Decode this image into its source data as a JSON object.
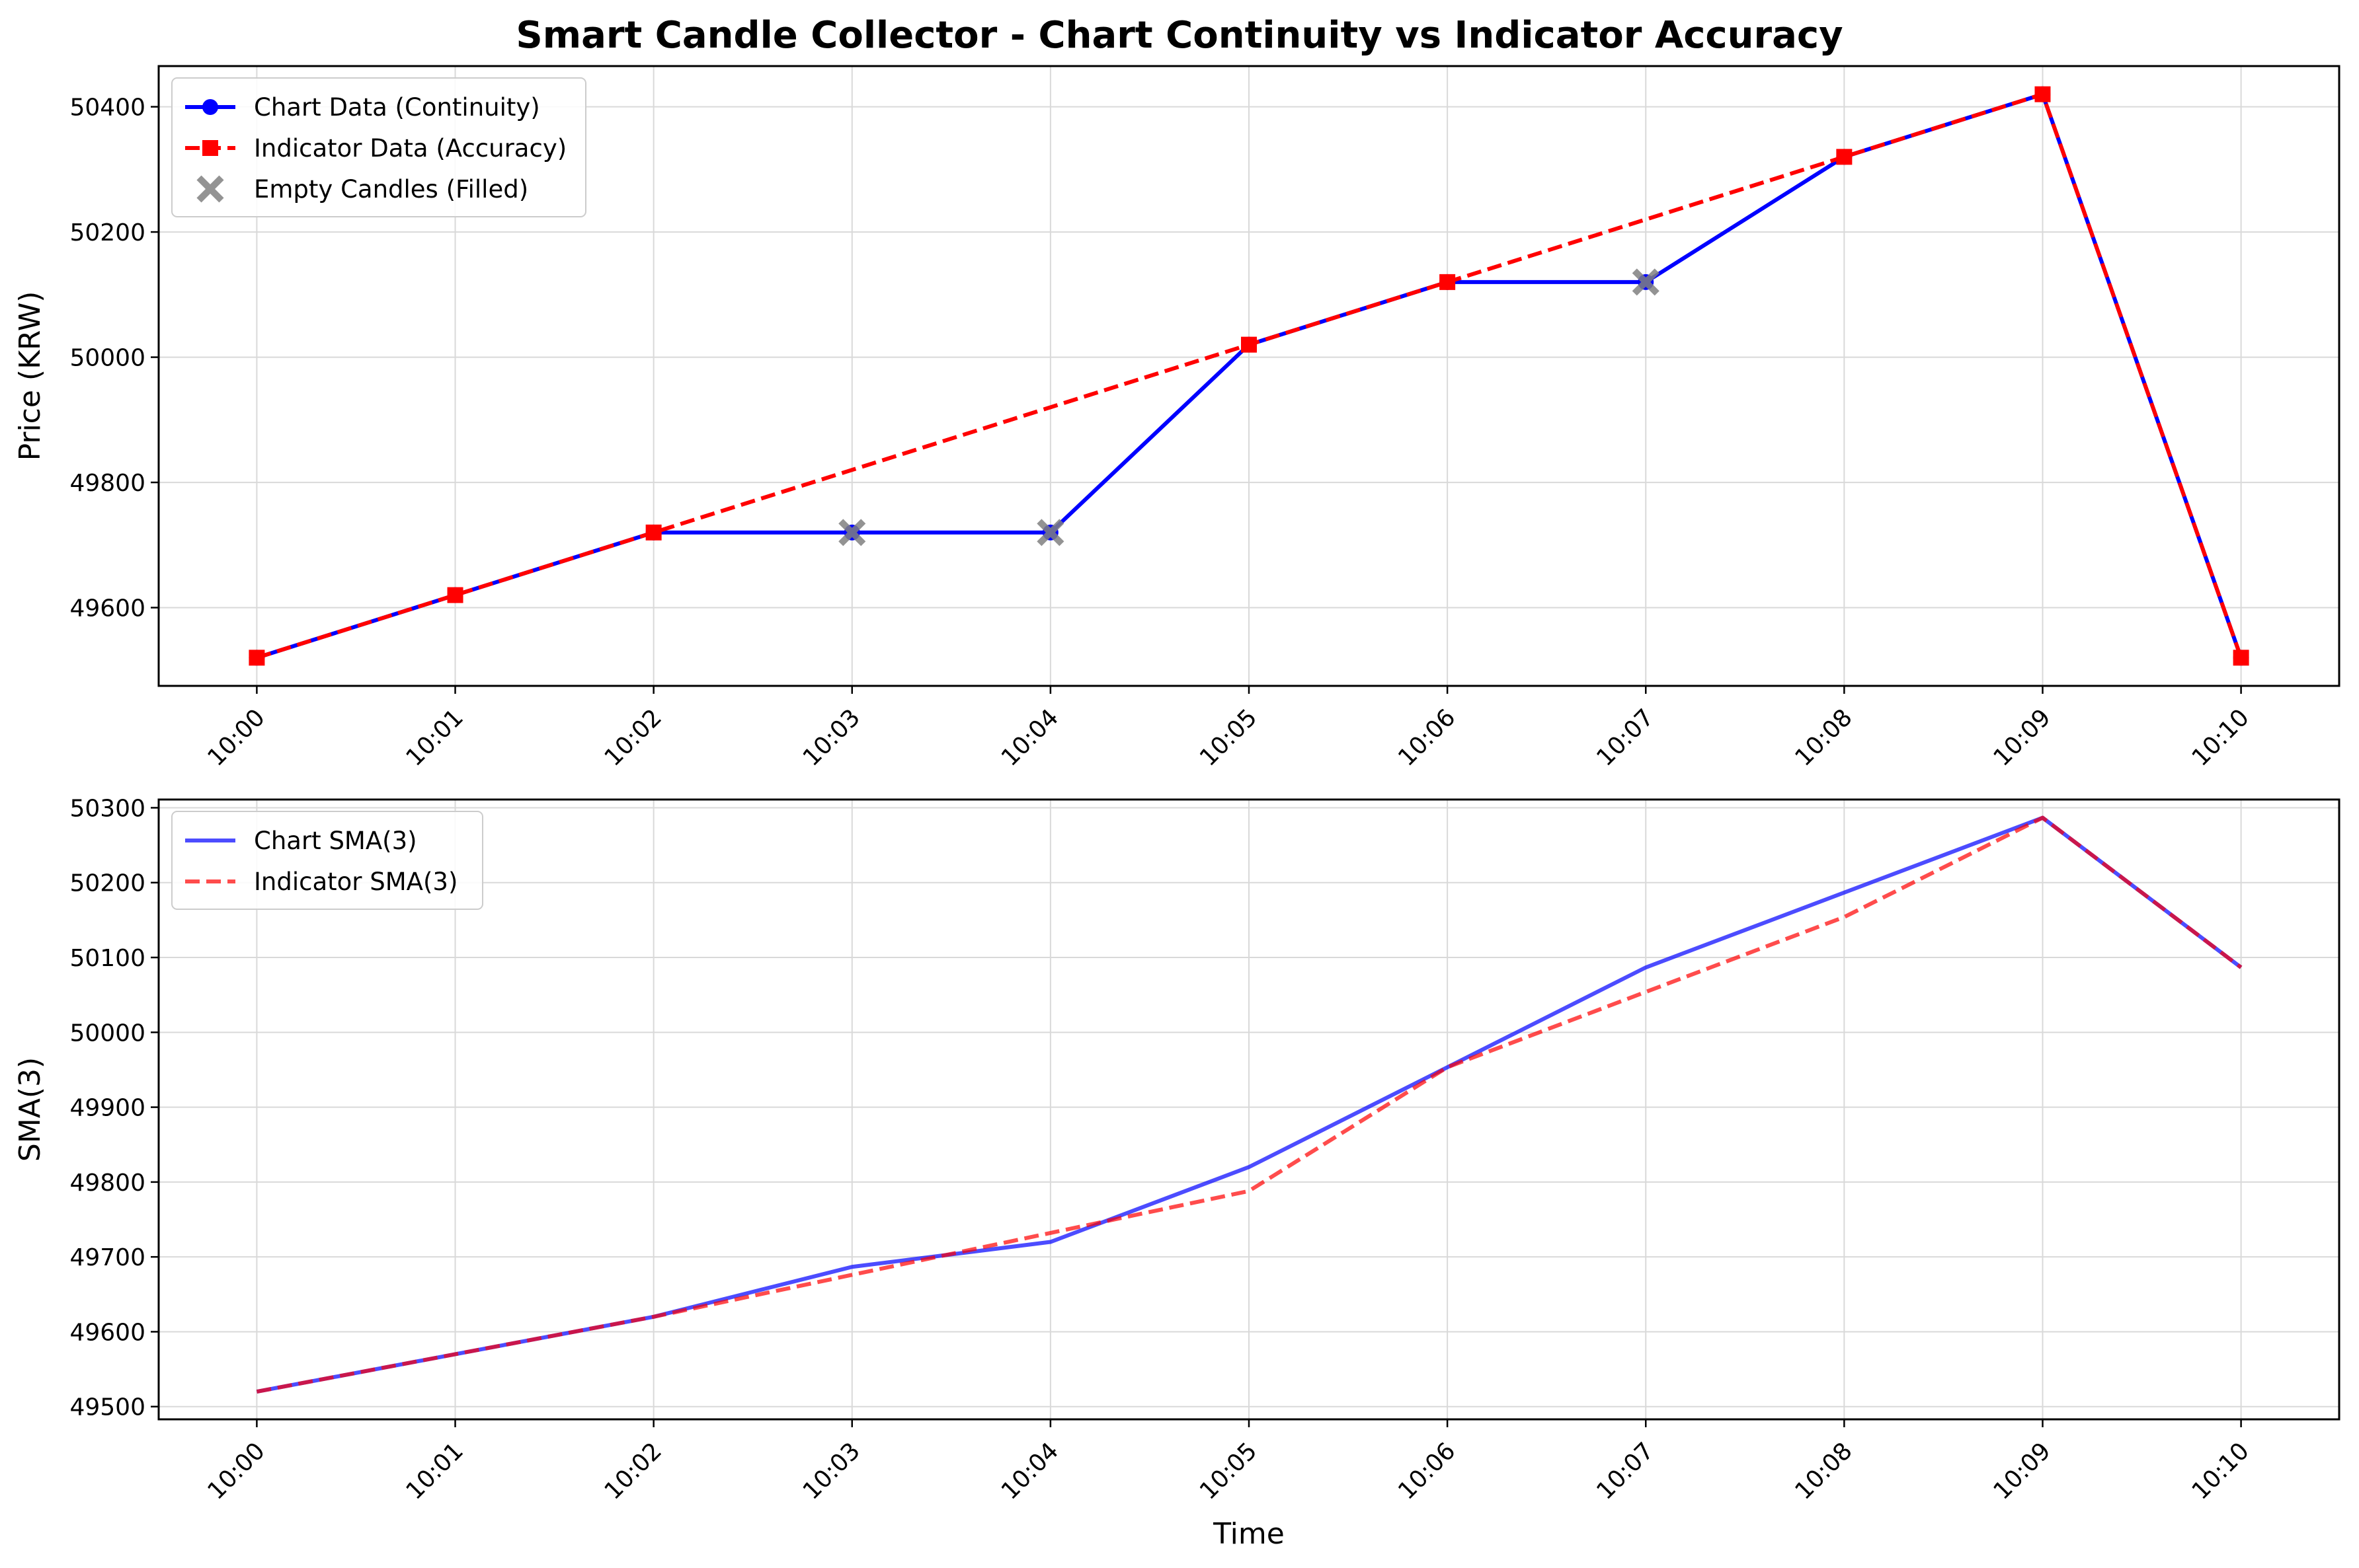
{
  "figure": {
    "title": "Smart Candle Collector - Chart Continuity vs Indicator Accuracy"
  },
  "chart_data": [
    {
      "type": "line",
      "ylabel": "Price (KRW)",
      "xlabel": "",
      "x": [
        "10:00",
        "10:01",
        "10:02",
        "10:03",
        "10:04",
        "10:05",
        "10:06",
        "10:07",
        "10:08",
        "10:09",
        "10:10"
      ],
      "ylim": [
        49475,
        50465
      ],
      "yticks": [
        49600,
        49800,
        50000,
        50200,
        50400
      ],
      "grid": true,
      "legend_position": "upper left",
      "series": [
        {
          "name": "Chart Data (Continuity)",
          "color": "#0000ff",
          "line": "solid",
          "marker": "circle",
          "values": [
            49520,
            49620,
            49720,
            49720,
            49720,
            50020,
            50120,
            50120,
            50320,
            50420,
            49520
          ]
        },
        {
          "name": "Indicator Data (Accuracy)",
          "color": "#ff0000",
          "line": "dashed",
          "marker": "square",
          "x": [
            "10:00",
            "10:01",
            "10:02",
            "10:05",
            "10:06",
            "10:08",
            "10:09",
            "10:10"
          ],
          "values": [
            49520,
            49620,
            49720,
            50020,
            50120,
            50320,
            50420,
            49520
          ]
        },
        {
          "name": "Empty Candles (Filled)",
          "color": "#808080",
          "line": "none",
          "marker": "x",
          "x": [
            "10:03",
            "10:04",
            "10:07"
          ],
          "values": [
            49720,
            49720,
            50120
          ]
        }
      ]
    },
    {
      "type": "line",
      "ylabel": "SMA(3)",
      "xlabel": "Time",
      "x": [
        "10:00",
        "10:01",
        "10:02",
        "10:03",
        "10:04",
        "10:05",
        "10:06",
        "10:07",
        "10:08",
        "10:09",
        "10:10"
      ],
      "ylim": [
        49483,
        50311
      ],
      "yticks": [
        49500,
        49600,
        49700,
        49800,
        49900,
        50000,
        50100,
        50200,
        50300
      ],
      "grid": true,
      "legend_position": "upper left",
      "series": [
        {
          "name": "Chart SMA(3)",
          "color": "#0000ff",
          "line": "solid",
          "values": [
            49520,
            49570,
            49620,
            49686.67,
            49720,
            49820,
            49953.33,
            50086.67,
            50186.67,
            50286.67,
            50086.67
          ]
        },
        {
          "name": "Indicator SMA(3)",
          "color": "#ff0000",
          "line": "dashed",
          "values": [
            49520,
            49570,
            49620,
            49676,
            49732,
            49788,
            49953.33,
            50054,
            50154,
            50286.67,
            50086.67
          ]
        }
      ]
    }
  ]
}
